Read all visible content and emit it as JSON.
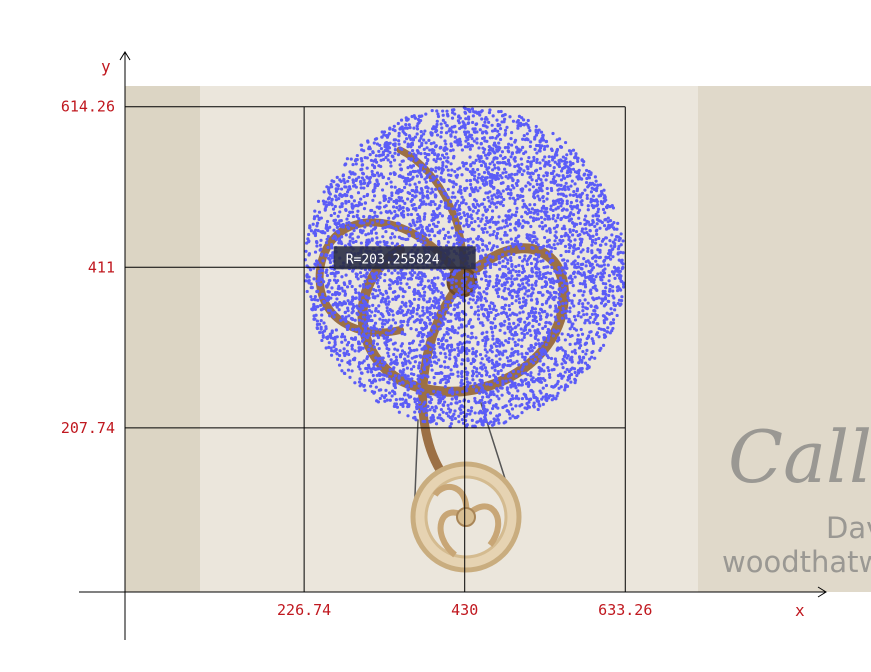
{
  "chart_data": {
    "type": "scatter",
    "xlabel": "x",
    "ylabel": "y",
    "xlim": [
      0,
      1000
    ],
    "ylim": [
      0,
      700
    ],
    "x_ticks": [
      226.74,
      430,
      633.26
    ],
    "y_ticks": [
      207.74,
      411,
      614.26
    ],
    "x_tick_labels": [
      "226.74",
      "430",
      "633.26"
    ],
    "y_tick_labels": [
      "207.74",
      "411",
      "614.26"
    ],
    "circle": {
      "cx": 430,
      "cy": 411,
      "r": 203.255824
    },
    "radius_label": "R=203.255824",
    "point_color": "#5b5cf7",
    "point_count": 5200,
    "grid": false,
    "legend": "none"
  },
  "background_photo": {
    "watermark_script": "Callig",
    "watermark_name": "Dav",
    "watermark_site": "woodthatw"
  }
}
